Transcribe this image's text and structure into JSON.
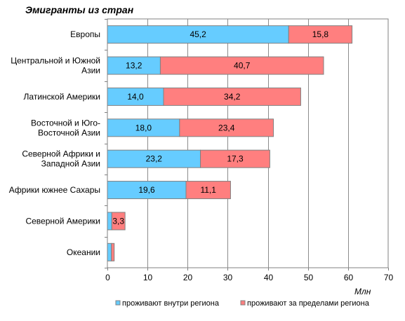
{
  "chart_data": {
    "type": "bar",
    "orientation": "horizontal",
    "stacked": true,
    "title": "Эмигранты из стран",
    "xlabel": "Млн",
    "ylabel": "",
    "xlim": [
      0,
      70
    ],
    "xticks": [
      "0",
      "10",
      "20",
      "30",
      "40",
      "50",
      "60",
      "70"
    ],
    "grid": true,
    "legend_position": "bottom",
    "categories": [
      [
        "Европы"
      ],
      [
        "Центральной и Южной",
        "Азии"
      ],
      [
        "Латинской Америки"
      ],
      [
        "Восточной и Юго-",
        "Восточной Азии"
      ],
      [
        "Северной Африки и",
        "Западной Азии"
      ],
      [
        "Африки южнее Сахары"
      ],
      [
        "Северной Америки"
      ],
      [
        "Океании"
      ]
    ],
    "series": [
      {
        "name": "проживают внутри региона",
        "color": "#66ccff",
        "values": [
          45.2,
          13.2,
          14.0,
          18.0,
          23.2,
          19.6,
          1.1,
          1.0
        ],
        "labels": [
          "45,2",
          "13,2",
          "14,0",
          "18,0",
          "23,2",
          "19,6",
          "",
          ""
        ]
      },
      {
        "name": "проживают за пределами региона",
        "color": "#ff7f7f",
        "values": [
          15.8,
          40.7,
          34.2,
          23.4,
          17.3,
          11.1,
          3.3,
          0.7
        ],
        "labels": [
          "15,8",
          "40,7",
          "34,2",
          "23,4",
          "17,3",
          "11,1",
          "3,3",
          ""
        ]
      }
    ]
  }
}
